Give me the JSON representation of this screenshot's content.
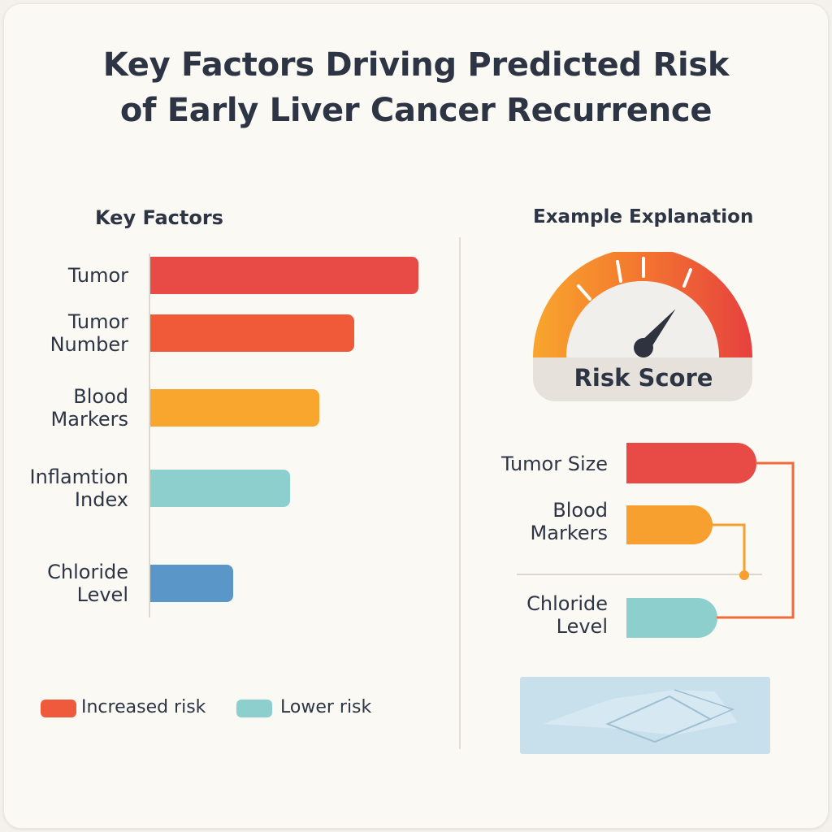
{
  "title": {
    "line1": "Key Factors Driving Predicted Risk",
    "line2": "of Early Liver Cancer Recurrence"
  },
  "left_panel": {
    "heading": "Key Factors"
  },
  "right_panel": {
    "heading": "Example Explanation",
    "gauge_label": "Risk Score",
    "gauge_needle_fraction": 0.72,
    "factors": [
      {
        "label": "Tumor Size",
        "color": "#e84a45"
      },
      {
        "label_line1": "Blood",
        "label_line2": "Markers",
        "color": "#f7a030"
      },
      {
        "label_line1": "Chloride",
        "label_line2": "Level",
        "color": "#8ccfcd"
      }
    ],
    "connector_colors": [
      "#f26a3a",
      "#f7a030"
    ]
  },
  "legend": [
    {
      "label": "Increased risk",
      "color": "#f05a3c"
    },
    {
      "label": "Lower risk",
      "color": "#8ccfcd"
    }
  ],
  "chart_data": {
    "type": "bar",
    "orientation": "horizontal",
    "title": "Key Factors",
    "xlabel": "",
    "ylabel": "",
    "categories": [
      "Tumor",
      "Tumor Number",
      "Blood Markers",
      "Inflamtion Index",
      "Chloride Level"
    ],
    "category_lines": [
      [
        "Tumor"
      ],
      [
        "Tumor",
        "Number"
      ],
      [
        "Blood",
        "Markers"
      ],
      [
        "Inflamtion",
        "Index"
      ],
      [
        "Chloride",
        "Level"
      ]
    ],
    "values": [
      100,
      76,
      63,
      52,
      31
    ],
    "colors": [
      "#e84a45",
      "#f05a38",
      "#f8a62e",
      "#8ccfcd",
      "#5b96c8"
    ],
    "xlim": [
      0,
      100
    ]
  }
}
